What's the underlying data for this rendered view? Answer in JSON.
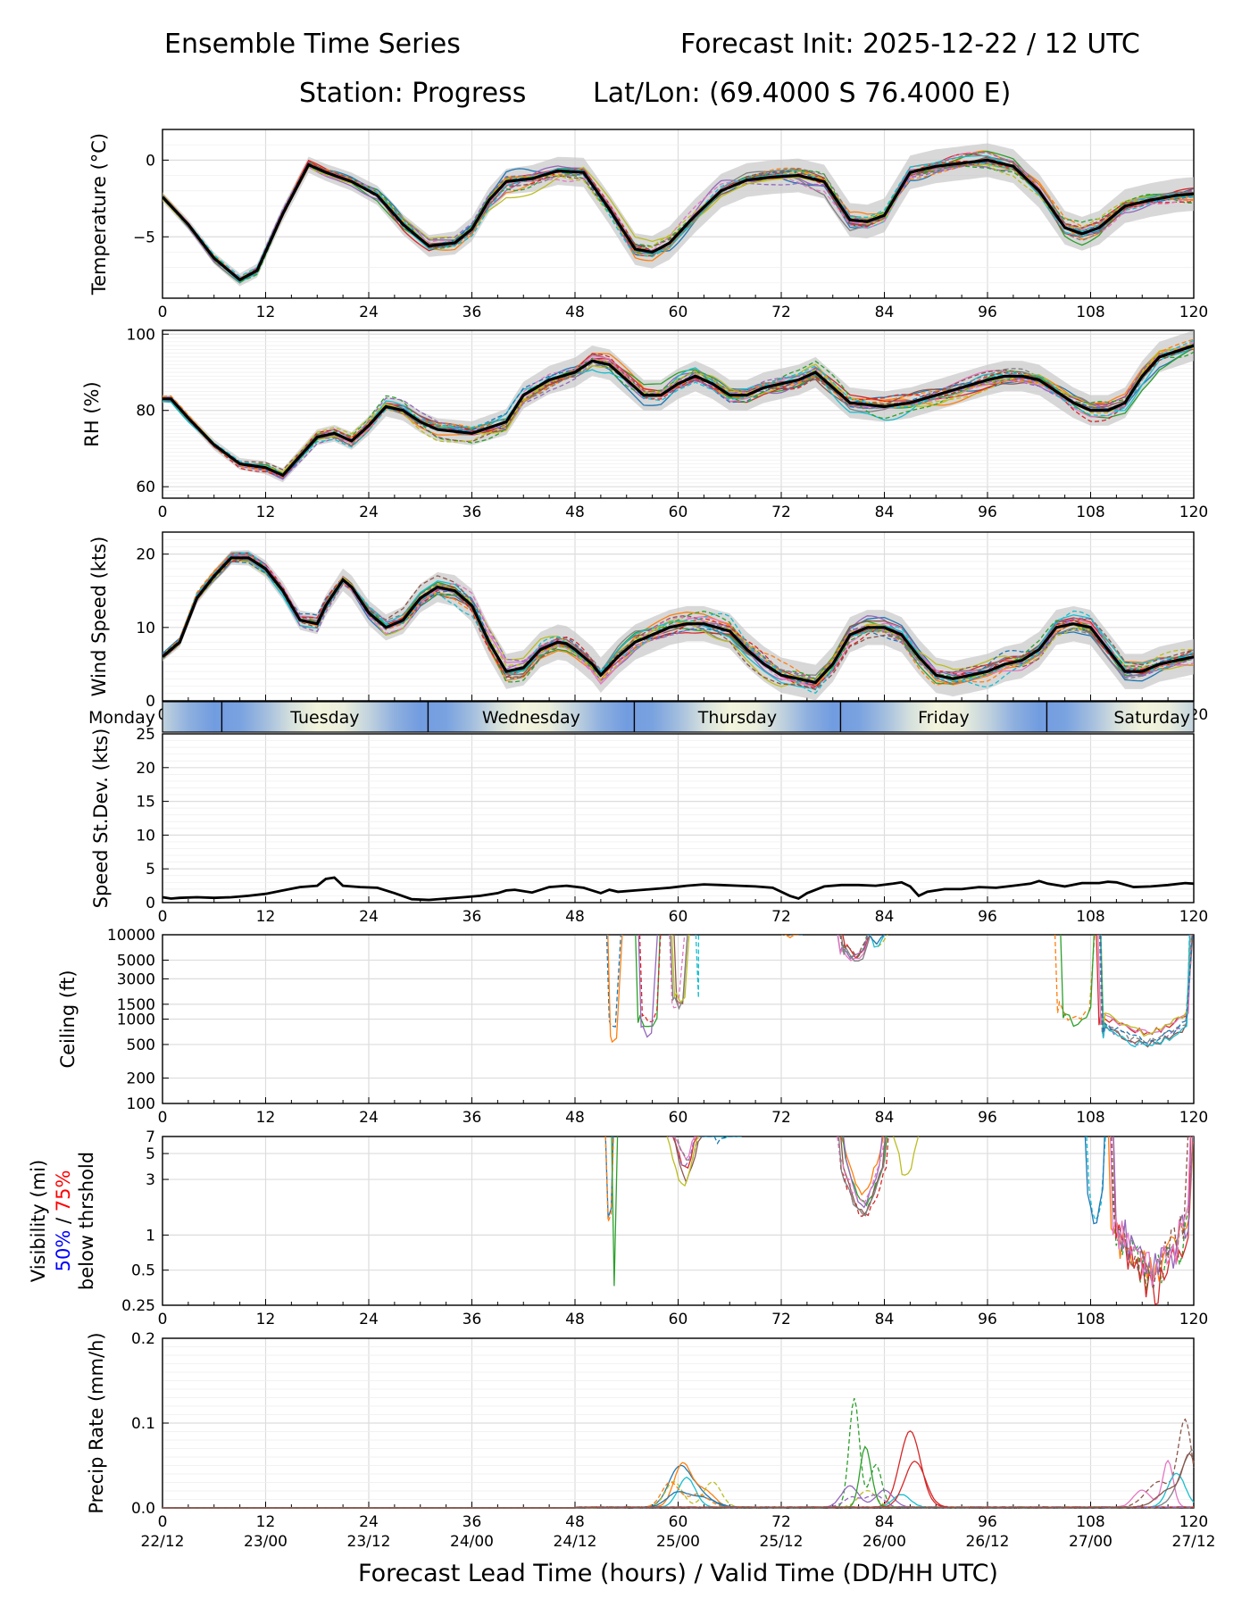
{
  "header": {
    "title_left": "Ensemble Time Series",
    "title_right": "Forecast Init: 2025-12-22 / 12 UTC",
    "station": "Station: Progress",
    "latlon": "Lat/Lon: (69.4000 S 76.4000 E)"
  },
  "xaxis": {
    "range": [
      0,
      120
    ],
    "ticks": [
      0,
      12,
      24,
      36,
      48,
      60,
      72,
      84,
      96,
      108,
      120
    ],
    "valid_time_labels": [
      "22/12",
      "23/00",
      "23/12",
      "24/00",
      "24/12",
      "25/00",
      "25/12",
      "26/00",
      "26/12",
      "27/00",
      "27/12"
    ],
    "xlabel": "Forecast Lead Time (hours) / Valid Time (DD/HH UTC)"
  },
  "day_band": {
    "days": [
      "Monday",
      "Tuesday",
      "Wednesday",
      "Thursday",
      "Friday",
      "Saturday"
    ],
    "boundaries_hours": [
      6.9,
      30.9,
      54.9,
      78.9,
      102.9
    ]
  },
  "colors": {
    "ensemble": [
      "#1f77b4",
      "#ff7f0e",
      "#2ca02c",
      "#d62728",
      "#9467bd",
      "#8c564b",
      "#e377c2",
      "#7f7f7f",
      "#bcbd22",
      "#17becf"
    ],
    "mean": "#000000",
    "band": "#c8c8c8",
    "vis50": "#0000ff",
    "vis75": "#ff0000",
    "grid": "#dddddd",
    "day_warm": "#f5f5dc",
    "day_cool": "#6f9be0"
  },
  "chart_data": [
    {
      "id": "temperature",
      "type": "line",
      "ylabel": "Temperature (°C)",
      "ylim": [
        -9,
        2
      ],
      "yscale": "linear",
      "yticks": [
        -5,
        0
      ],
      "ytick_labels": [
        "−5",
        "0"
      ],
      "mean": {
        "x": [
          0,
          3,
          6,
          9,
          11,
          14,
          17,
          19,
          22,
          25,
          28,
          31,
          34,
          36,
          38,
          40,
          43,
          46,
          49,
          52,
          55,
          57,
          59,
          62,
          65,
          68,
          71,
          74,
          77,
          80,
          82,
          84,
          87,
          90,
          93,
          96,
          99,
          102,
          105,
          107,
          109,
          112,
          115,
          118,
          120
        ],
        "y": [
          -2.4,
          -4.2,
          -6.4,
          -7.8,
          -7.2,
          -3.5,
          -0.3,
          -0.8,
          -1.4,
          -2.3,
          -4.2,
          -5.6,
          -5.4,
          -4.5,
          -2.6,
          -1.4,
          -1.2,
          -0.7,
          -0.8,
          -3.2,
          -5.8,
          -6.0,
          -5.4,
          -3.6,
          -2.0,
          -1.3,
          -1.1,
          -1.0,
          -1.4,
          -3.9,
          -4.0,
          -3.6,
          -0.8,
          -0.4,
          -0.2,
          0.0,
          -0.4,
          -2.0,
          -4.4,
          -4.8,
          -4.4,
          -3.0,
          -2.6,
          -2.3,
          -2.2
        ]
      }
    },
    {
      "id": "rh",
      "type": "line",
      "ylabel": "RH (%)",
      "ylim": [
        57,
        101
      ],
      "yscale": "linear",
      "yticks": [
        60,
        80,
        100
      ],
      "ytick_labels": [
        "60",
        "80",
        "100"
      ],
      "mean": {
        "x": [
          0,
          1,
          3,
          6,
          9,
          12,
          14,
          16,
          18,
          20,
          22,
          24,
          26,
          28,
          30,
          32,
          36,
          40,
          42,
          45,
          48,
          50,
          52,
          54,
          56,
          58,
          60,
          62,
          64,
          66,
          68,
          70,
          72,
          74,
          76,
          78,
          80,
          84,
          87,
          90,
          93,
          96,
          98,
          100,
          102,
          104,
          106,
          108,
          110,
          112,
          114,
          116,
          120
        ],
        "y": [
          83,
          83,
          78,
          71,
          66,
          65,
          63,
          68,
          73,
          74,
          72,
          76,
          81,
          80,
          77,
          75,
          74,
          77,
          84,
          88,
          90,
          93,
          92,
          88,
          84,
          84,
          87,
          89,
          87,
          84,
          84,
          86,
          87,
          88,
          90,
          86,
          82,
          81,
          82,
          84,
          86,
          88,
          89,
          89,
          88,
          85,
          82,
          80,
          80,
          82,
          89,
          94,
          97
        ]
      }
    },
    {
      "id": "wind",
      "type": "line",
      "ylabel": "Wind Speed (kts)",
      "ylim": [
        0,
        23
      ],
      "yscale": "linear",
      "yticks": [
        0,
        10,
        20
      ],
      "ytick_labels": [
        "0",
        "10",
        "20"
      ],
      "mean": {
        "x": [
          0,
          2,
          4,
          6,
          8,
          10,
          12,
          14,
          16,
          18,
          19,
          21,
          22,
          24,
          26,
          28,
          30,
          32,
          34,
          36,
          38,
          40,
          42,
          44,
          46,
          47,
          48,
          50,
          51,
          53,
          55,
          57,
          59,
          61,
          63,
          66,
          68,
          70,
          72,
          74,
          76,
          78,
          80,
          82,
          84,
          86,
          88,
          90,
          92,
          94,
          96,
          98,
          100,
          102,
          104,
          106,
          108,
          110,
          112,
          114,
          116,
          118,
          120
        ],
        "y": [
          6,
          8,
          14,
          17,
          19.5,
          19.5,
          18,
          15,
          11,
          10.5,
          13,
          16.5,
          15.5,
          12,
          10,
          11,
          14,
          15.5,
          15,
          13,
          8,
          4,
          4.5,
          7,
          8,
          7.8,
          7,
          5,
          3.5,
          6,
          8,
          9,
          10,
          10.5,
          10.5,
          9.5,
          7,
          5,
          3.5,
          3,
          2.5,
          5,
          9,
          10,
          10,
          9,
          6,
          3.5,
          3,
          3.5,
          4,
          5,
          5.5,
          7,
          10,
          10.5,
          10,
          7,
          4,
          4,
          5,
          5.5,
          6
        ]
      }
    },
    {
      "id": "speed_stdev",
      "type": "line",
      "ylabel": "Speed St.Dev. (kts)",
      "ylim": [
        0,
        25
      ],
      "yscale": "linear",
      "yticks": [
        0,
        5,
        10,
        15,
        20,
        25
      ],
      "ytick_labels": [
        "0",
        "5",
        "10",
        "15",
        "20",
        "25"
      ],
      "mean": {
        "x": [
          0,
          1,
          2,
          4,
          6,
          8,
          10,
          12,
          14,
          16,
          18,
          19,
          20,
          21,
          23,
          25,
          27,
          29,
          31,
          33,
          35,
          37,
          39,
          40,
          41,
          43,
          45,
          47,
          49,
          50,
          51,
          52,
          53,
          55,
          57,
          59,
          61,
          63,
          65,
          67,
          69,
          71,
          73,
          74,
          75,
          77,
          79,
          81,
          83,
          85,
          86,
          87,
          88,
          89,
          91,
          93,
          95,
          97,
          99,
          101,
          102,
          103,
          105,
          107,
          109,
          110,
          111,
          113,
          115,
          117,
          119,
          120
        ],
        "y": [
          0.8,
          0.6,
          0.7,
          0.8,
          0.7,
          0.8,
          1.0,
          1.3,
          1.8,
          2.3,
          2.5,
          3.5,
          3.7,
          2.5,
          2.3,
          2.2,
          1.4,
          0.5,
          0.4,
          0.6,
          0.8,
          1.0,
          1.4,
          1.8,
          1.9,
          1.5,
          2.3,
          2.5,
          2.2,
          1.8,
          1.4,
          1.9,
          1.6,
          1.8,
          2.0,
          2.2,
          2.5,
          2.7,
          2.6,
          2.5,
          2.4,
          2.2,
          1.0,
          0.6,
          1.4,
          2.4,
          2.6,
          2.6,
          2.5,
          2.8,
          3.0,
          2.4,
          1.0,
          1.6,
          2.0,
          2.0,
          2.3,
          2.2,
          2.5,
          2.8,
          3.2,
          2.8,
          2.4,
          2.9,
          2.9,
          3.1,
          3.0,
          2.3,
          2.4,
          2.6,
          2.9,
          2.8
        ]
      }
    },
    {
      "id": "ceiling",
      "type": "line",
      "ylabel": "Ceiling (ft)",
      "ylim": [
        100,
        10000
      ],
      "yscale": "log",
      "yticks": [
        100,
        200,
        500,
        1000,
        1500,
        3000,
        5000,
        10000
      ],
      "ytick_labels": [
        "100",
        "200",
        "500",
        "1000",
        "1500",
        "3000",
        "5000",
        "10000"
      ]
    },
    {
      "id": "visibility",
      "type": "line",
      "ylabel": "Visibility (mi)",
      "ylabel_50": "50%",
      "ylabel_sep": " / ",
      "ylabel_75": "75%",
      "ylabel_3": "below thrshold",
      "ylim": [
        0.25,
        7
      ],
      "yscale": "log",
      "yticks": [
        0.25,
        0.5,
        1,
        3,
        5,
        7
      ],
      "ytick_labels": [
        "0.25",
        "0.5",
        "1",
        "3",
        "5",
        "7"
      ]
    },
    {
      "id": "precip",
      "type": "line",
      "ylabel": "Precip Rate (mm/h)",
      "ylim": [
        0,
        0.2
      ],
      "yscale": "linear",
      "yticks": [
        0.0,
        0.1,
        0.2
      ],
      "ytick_labels": [
        "0.0",
        "0.1",
        "0.2"
      ]
    }
  ]
}
